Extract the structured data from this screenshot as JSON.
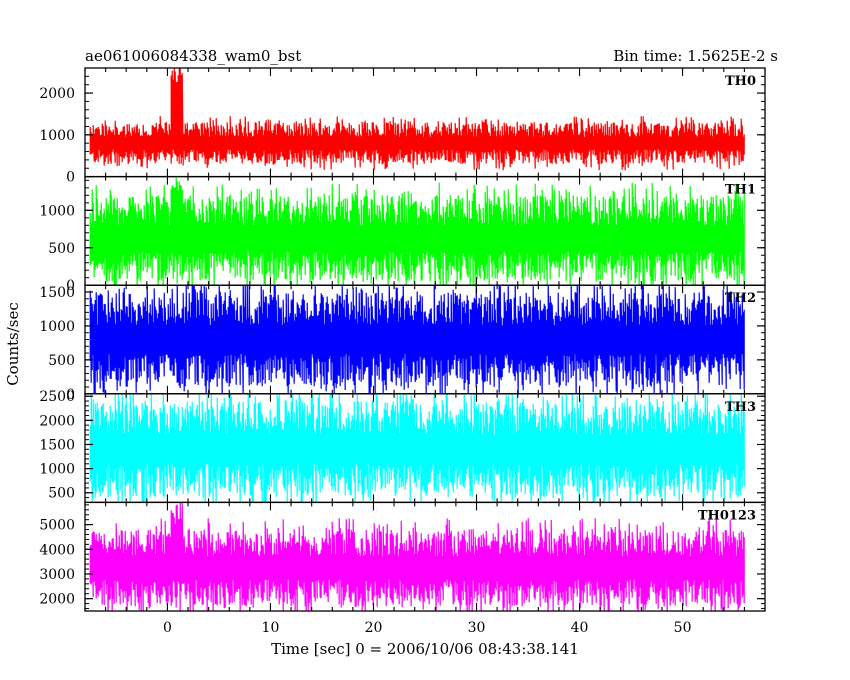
{
  "chart_data": {
    "type": "line",
    "title_left": "ae061006084338_wam0_bst",
    "title_right": "Bin time: 1.5625E-2 s",
    "xlabel": "Time [sec] 0 = 2006/10/06 08:43:38.141",
    "ylabel": "Counts/sec",
    "xlim": [
      -8,
      58
    ],
    "x_ticks": [
      0,
      10,
      20,
      30,
      40,
      50
    ],
    "x_data_range": [
      -7.5,
      56
    ],
    "bin_time": 0.015625,
    "panels": [
      {
        "name": "TH0",
        "color": "#ff0000",
        "ylim": [
          0,
          2600
        ],
        "y_ticks": [
          0,
          1000,
          2000
        ],
        "typical_range": [
          300,
          1300
        ],
        "mean": 800,
        "spike": {
          "x_range": [
            0.3,
            1.5
          ],
          "peak": 2600
        }
      },
      {
        "name": "TH1",
        "color": "#00ff00",
        "ylim": [
          0,
          1450
        ],
        "y_ticks": [
          0,
          500,
          1000
        ],
        "typical_range": [
          50,
          1200
        ],
        "mean": 550,
        "spike": {
          "x_range": [
            0.3,
            1.5
          ],
          "peak": 1450
        }
      },
      {
        "name": "TH2",
        "color": "#0000ff",
        "ylim": [
          0,
          1600
        ],
        "y_ticks": [
          0,
          500,
          1000,
          1500
        ],
        "typical_range": [
          100,
          1500
        ],
        "mean": 750,
        "spike": null
      },
      {
        "name": "TH3",
        "color": "#00ffff",
        "ylim": [
          300,
          2550
        ],
        "y_ticks": [
          500,
          1000,
          1500,
          2000,
          2500
        ],
        "typical_range": [
          400,
          2400
        ],
        "mean": 1300,
        "spike": null
      },
      {
        "name": "TH0123",
        "color": "#ff00ff",
        "ylim": [
          1500,
          5900
        ],
        "y_ticks": [
          2000,
          3000,
          4000,
          5000
        ],
        "typical_range": [
          1700,
          4800
        ],
        "mean": 3000,
        "spike": {
          "x_range": [
            0.3,
            1.5
          ],
          "peak": 5900
        }
      }
    ]
  }
}
